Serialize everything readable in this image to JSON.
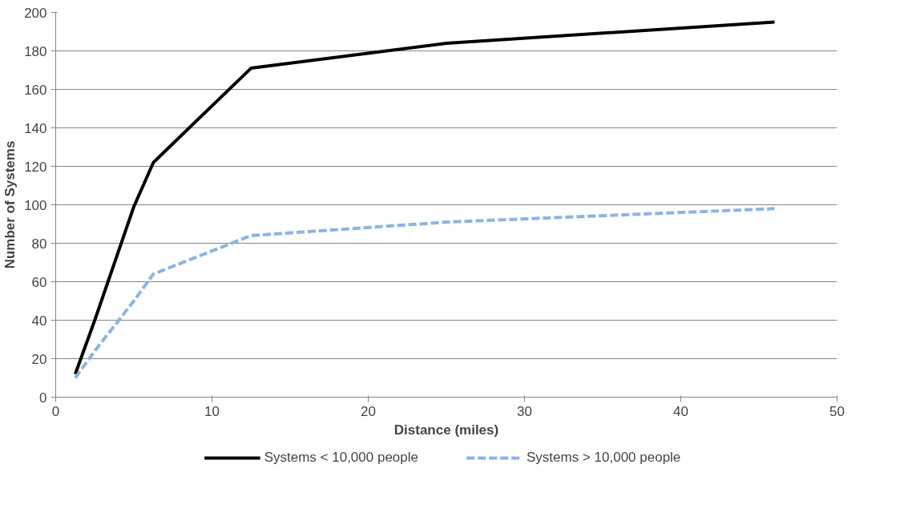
{
  "chart_data": {
    "type": "line",
    "xlabel": "Distance (miles)",
    "ylabel": "Number of Systems",
    "xlim": [
      0,
      50
    ],
    "xticks": [
      0,
      10,
      20,
      30,
      40,
      50
    ],
    "ylim": [
      0,
      200
    ],
    "yticks": [
      0,
      20,
      40,
      60,
      80,
      100,
      120,
      140,
      160,
      180,
      200
    ],
    "grid": "y",
    "legend": "bottom",
    "series": [
      {
        "name": "Systems < 10,000 people",
        "color": "#000000",
        "line_style": "solid",
        "x": [
          1.25,
          2.5,
          5,
          6.25,
          12.5,
          25,
          46
        ],
        "values": [
          12,
          40,
          99,
          122,
          171,
          184,
          195
        ]
      },
      {
        "name": "Systems > 10,000 people",
        "color": "#8db3e2",
        "line_style": "dashed",
        "x": [
          1.25,
          2.5,
          5,
          6.25,
          12.5,
          25,
          46
        ],
        "values": [
          10,
          24,
          50,
          64,
          84,
          91,
          98
        ]
      }
    ]
  }
}
